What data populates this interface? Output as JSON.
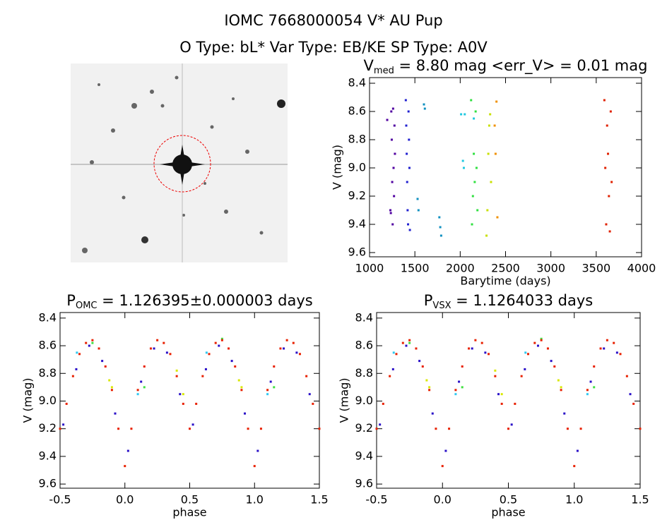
{
  "header": {
    "title": "IOMC 7668000054   V* AU Pup",
    "subtitle": "O Type: bL*  Var Type: EB/KE  SP Type: A0V"
  },
  "chart_data": [
    {
      "type": "scatter",
      "title": {
        "main": "V",
        "sub": "med",
        "rest": " = 8.80 mag <err_V> = 0.01 mag"
      },
      "xlabel": "Barytime (days)",
      "ylabel": "V (mag)",
      "xlim": [
        1000,
        4000
      ],
      "ylim": [
        9.63,
        8.36
      ],
      "xticks": [
        1000,
        1500,
        2000,
        2500,
        3000,
        3500,
        4000
      ],
      "yticks": [
        8.4,
        8.6,
        8.8,
        {
          "value": 9,
          "label": "9.0"
        },
        9.2,
        9.4,
        9.6
      ],
      "series": [
        {
          "color": "#5000a0",
          "x": [
            1195,
            1230,
            1235,
            1240,
            1245,
            1250,
            1255,
            1260,
            1265,
            1270,
            1275,
            1280
          ],
          "values": [
            8.66,
            9.3,
            9.32,
            8.6,
            8.8,
            9.1,
            9.4,
            8.58,
            9.0,
            9.2,
            8.7,
            8.9
          ]
        },
        {
          "color": "#2020d0",
          "x": [
            1400,
            1405,
            1410,
            1415,
            1420,
            1425,
            1430,
            1435,
            1440,
            1445
          ],
          "values": [
            8.52,
            8.7,
            8.9,
            9.1,
            9.3,
            9.4,
            8.6,
            8.8,
            9.0,
            9.44
          ]
        },
        {
          "color": "#1090c0",
          "x": [
            1530,
            1540,
            1600,
            1610,
            1770,
            1780,
            1790
          ],
          "values": [
            9.22,
            9.3,
            8.55,
            8.58,
            9.35,
            9.42,
            9.48
          ]
        },
        {
          "color": "#20c8e0",
          "x": [
            2010,
            2030,
            2040,
            2050,
            2150
          ],
          "values": [
            8.62,
            8.95,
            9.0,
            8.62,
            8.65
          ]
        },
        {
          "color": "#30e040",
          "x": [
            2120,
            2130,
            2140,
            2150,
            2160,
            2170,
            2180,
            2190
          ],
          "values": [
            8.52,
            9.4,
            9.2,
            8.9,
            9.1,
            8.6,
            9.0,
            9.3
          ]
        },
        {
          "color": "#c8e000",
          "x": [
            2290,
            2300,
            2310,
            2320,
            2330,
            2340
          ],
          "values": [
            9.48,
            9.3,
            8.9,
            8.7,
            8.62,
            9.1
          ]
        },
        {
          "color": "#f09000",
          "x": [
            2380,
            2390,
            2400,
            2410
          ],
          "values": [
            8.7,
            8.9,
            8.53,
            9.35
          ]
        },
        {
          "color": "#e02000",
          "x": [
            3590,
            3600,
            3610,
            3620,
            3630,
            3640,
            3650,
            3660,
            3670
          ],
          "values": [
            8.52,
            9.0,
            9.4,
            8.7,
            8.9,
            9.2,
            9.45,
            8.6,
            9.1
          ]
        }
      ]
    },
    {
      "type": "scatter",
      "title": {
        "main": "P",
        "sub": "OMC",
        "rest": " = 1.126395±0.000003 days"
      },
      "xlabel": "phase",
      "ylabel": "V (mag)",
      "xlim": [
        -0.5,
        1.5
      ],
      "ylim": [
        9.63,
        8.36
      ],
      "xticks": [
        -0.5,
        {
          "value": 0,
          "label": "0.0"
        },
        0.5,
        {
          "value": 1,
          "label": "1.0"
        },
        1.5
      ],
      "yticks": [
        8.4,
        8.6,
        8.8,
        {
          "value": 9,
          "label": "9.0"
        },
        9.2,
        9.4,
        9.6
      ],
      "series": [
        {
          "color": "#2a10c8",
          "x": [
            -0.475,
            -0.375,
            -0.275,
            -0.175,
            -0.075,
            0.025,
            0.125,
            0.225,
            0.325,
            0.425,
            0.525,
            0.625,
            0.725,
            0.825,
            0.925,
            1.025,
            1.125,
            1.225,
            1.325,
            1.425
          ],
          "values": [
            9.17,
            8.77,
            8.6,
            8.71,
            9.09,
            9.36,
            8.86,
            8.62,
            8.65,
            8.95,
            9.17,
            8.77,
            8.6,
            8.71,
            9.09,
            9.36,
            8.86,
            8.62,
            8.65,
            8.95
          ]
        },
        {
          "color": "#d8e800",
          "x": [
            -0.12,
            -0.1,
            0.88,
            0.9,
            0.4,
            0.45
          ],
          "values": [
            8.85,
            8.9,
            8.85,
            8.9,
            8.78,
            8.95
          ]
        },
        {
          "color": "#40e040",
          "x": [
            -0.25,
            0.75,
            0.15,
            1.15
          ],
          "values": [
            8.58,
            8.55,
            8.9,
            8.9
          ]
        },
        {
          "color": "#30c8f0",
          "x": [
            -0.37,
            0.1,
            1.1,
            0.63
          ],
          "values": [
            8.65,
            8.95,
            8.95,
            8.65
          ]
        },
        {
          "color": "#e82000",
          "x": [
            -0.5,
            -0.45,
            -0.4,
            -0.35,
            -0.3,
            -0.25,
            -0.2,
            -0.15,
            -0.1,
            -0.05,
            0,
            0.05,
            0.1,
            0.15,
            0.2,
            0.25,
            0.3,
            0.35,
            0.4,
            0.45,
            0.5,
            0.55,
            0.6,
            0.65,
            0.7,
            0.75,
            0.8,
            0.85,
            0.9,
            0.95,
            1,
            1.05,
            1.1,
            1.15,
            1.2,
            1.25,
            1.3,
            1.35,
            1.4,
            1.45,
            1.5
          ],
          "values": [
            9.2,
            9.02,
            8.82,
            8.66,
            8.58,
            8.56,
            8.62,
            8.75,
            8.92,
            9.2,
            9.47,
            9.2,
            8.92,
            8.75,
            8.62,
            8.56,
            8.58,
            8.66,
            8.82,
            9.02,
            9.2,
            9.02,
            8.82,
            8.66,
            8.58,
            8.56,
            8.62,
            8.75,
            8.92,
            9.2,
            9.47,
            9.2,
            8.92,
            8.75,
            8.62,
            8.56,
            8.58,
            8.66,
            8.82,
            9.02,
            9.2
          ]
        }
      ]
    },
    {
      "type": "scatter",
      "title": {
        "main": "P",
        "sub": "VSX",
        "rest": " = 1.1264033 days"
      },
      "xlabel": "phase",
      "ylabel": "V (mag)",
      "xlim": [
        -0.5,
        1.5
      ],
      "ylim": [
        9.63,
        8.36
      ],
      "xticks": [
        -0.5,
        {
          "value": 0,
          "label": "0.0"
        },
        0.5,
        {
          "value": 1,
          "label": "1.0"
        },
        1.5
      ],
      "yticks": [
        8.4,
        8.6,
        8.8,
        {
          "value": 9,
          "label": "9.0"
        },
        9.2,
        9.4,
        9.6
      ],
      "series": [
        {
          "color": "#2a10c8",
          "x": [
            -0.475,
            -0.375,
            -0.275,
            -0.175,
            -0.075,
            0.025,
            0.125,
            0.225,
            0.325,
            0.425,
            0.525,
            0.625,
            0.725,
            0.825,
            0.925,
            1.025,
            1.125,
            1.225,
            1.325,
            1.425
          ],
          "values": [
            9.17,
            8.77,
            8.6,
            8.71,
            9.09,
            9.36,
            8.86,
            8.62,
            8.65,
            8.95,
            9.17,
            8.77,
            8.6,
            8.71,
            9.09,
            9.36,
            8.86,
            8.62,
            8.65,
            8.95
          ]
        },
        {
          "color": "#d8e800",
          "x": [
            -0.12,
            -0.1,
            0.88,
            0.9,
            0.4,
            0.45
          ],
          "values": [
            8.85,
            8.9,
            8.85,
            8.9,
            8.78,
            8.95
          ]
        },
        {
          "color": "#40e040",
          "x": [
            -0.25,
            0.75,
            0.15,
            1.15
          ],
          "values": [
            8.58,
            8.55,
            8.9,
            8.9
          ]
        },
        {
          "color": "#30c8f0",
          "x": [
            -0.37,
            0.1,
            1.1,
            0.63
          ],
          "values": [
            8.65,
            8.95,
            8.95,
            8.65
          ]
        },
        {
          "color": "#e82000",
          "x": [
            -0.5,
            -0.45,
            -0.4,
            -0.35,
            -0.3,
            -0.25,
            -0.2,
            -0.15,
            -0.1,
            -0.05,
            0,
            0.05,
            0.1,
            0.15,
            0.2,
            0.25,
            0.3,
            0.35,
            0.4,
            0.45,
            0.5,
            0.55,
            0.6,
            0.65,
            0.7,
            0.75,
            0.8,
            0.85,
            0.9,
            0.95,
            1,
            1.05,
            1.1,
            1.15,
            1.2,
            1.25,
            1.3,
            1.35,
            1.4,
            1.45,
            1.5
          ],
          "values": [
            9.2,
            9.02,
            8.82,
            8.66,
            8.58,
            8.56,
            8.62,
            8.75,
            8.92,
            9.2,
            9.47,
            9.2,
            8.92,
            8.75,
            8.62,
            8.56,
            8.58,
            8.66,
            8.82,
            9.02,
            9.2,
            9.02,
            8.82,
            8.66,
            8.58,
            8.56,
            8.62,
            8.75,
            8.92,
            9.2,
            9.47,
            9.2,
            8.92,
            8.75,
            8.62,
            8.56,
            8.58,
            8.66,
            8.82,
            9.02,
            9.2
          ]
        }
      ]
    }
  ]
}
